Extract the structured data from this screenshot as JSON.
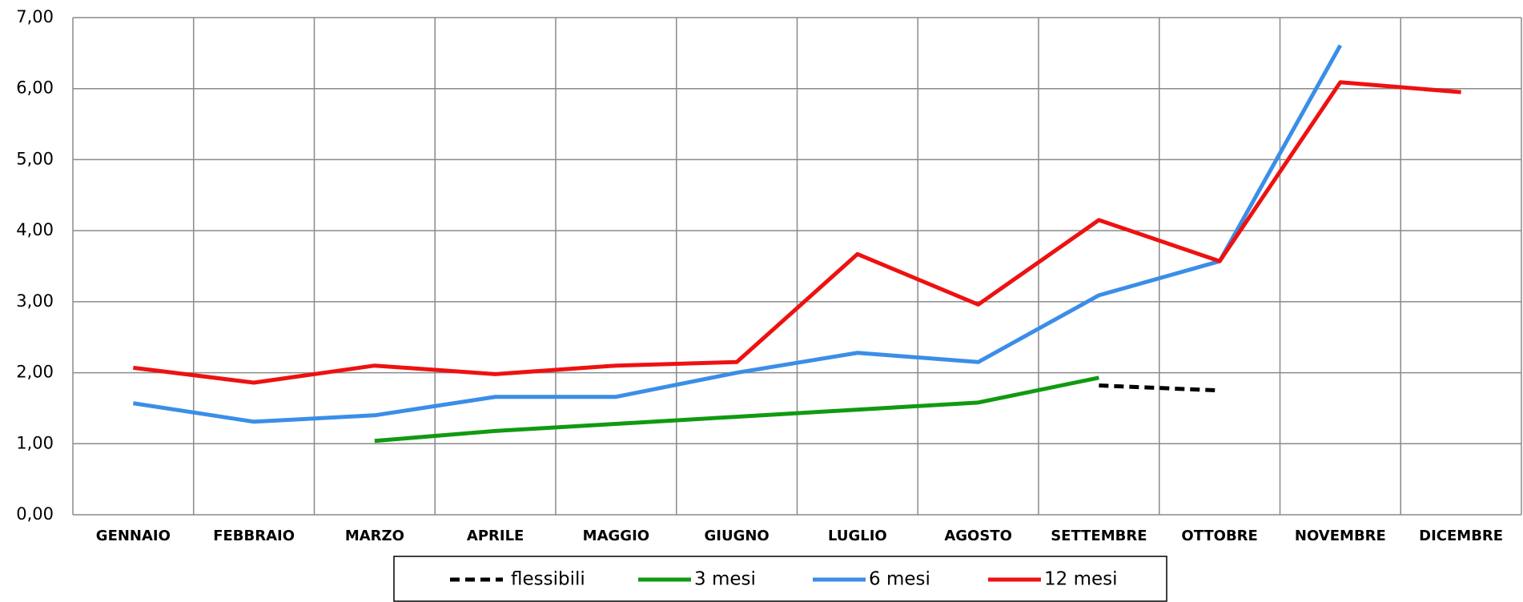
{
  "chart_data": {
    "type": "line",
    "categories": [
      "GENNAIO",
      "FEBBRAIO",
      "MARZO",
      "APRILE",
      "MAGGIO",
      "GIUGNO",
      "LUGLIO",
      "AGOSTO",
      "SETTEMBRE",
      "OTTOBRE",
      "NOVEMBRE",
      "DICEMBRE"
    ],
    "series": [
      {
        "name": "flessibili",
        "color": "#000000",
        "dashed": true,
        "values": [
          null,
          null,
          null,
          null,
          null,
          null,
          null,
          null,
          1.82,
          1.75,
          null,
          null
        ]
      },
      {
        "name": "3 mesi",
        "color": "#109a10",
        "values": [
          null,
          null,
          1.04,
          1.18,
          1.28,
          1.38,
          1.48,
          1.58,
          1.93,
          null,
          null,
          null
        ]
      },
      {
        "name": "6 mesi",
        "color": "#3a8ee8",
        "values": [
          1.57,
          1.31,
          1.4,
          1.66,
          1.66,
          2.0,
          2.28,
          2.15,
          3.09,
          3.57,
          6.61,
          null
        ]
      },
      {
        "name": "12 mesi",
        "color": "#ee1111",
        "values": [
          2.07,
          1.86,
          2.1,
          1.98,
          2.1,
          2.15,
          3.67,
          2.96,
          4.15,
          3.57,
          6.09,
          5.95
        ]
      }
    ],
    "ylim": [
      0,
      7
    ],
    "yticks": [
      {
        "value": 0,
        "label": "0,00"
      },
      {
        "value": 1,
        "label": "1,00"
      },
      {
        "value": 2,
        "label": "2,00"
      },
      {
        "value": 3,
        "label": "3,00"
      },
      {
        "value": 4,
        "label": "4,00"
      },
      {
        "value": 5,
        "label": "5,00"
      },
      {
        "value": 6,
        "label": "6,00"
      },
      {
        "value": 7,
        "label": "7,00"
      }
    ],
    "grid": true,
    "legend": "bottom"
  }
}
